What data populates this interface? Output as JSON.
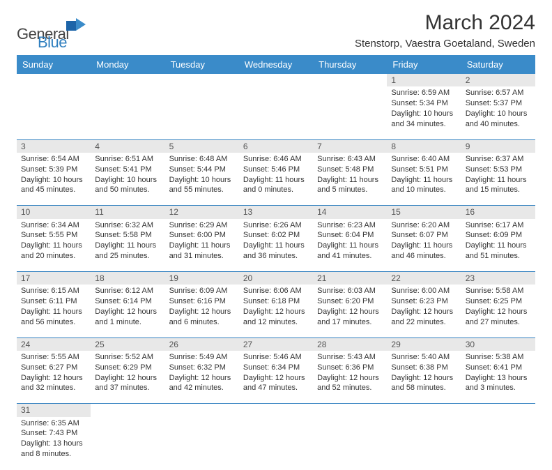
{
  "brand": {
    "general": "General",
    "blue": "Blue"
  },
  "title": "March 2024",
  "location": "Stenstorp, Vaestra Goetaland, Sweden",
  "colors": {
    "header_bg": "#3a8bc9",
    "header_text": "#ffffff",
    "daynum_bg": "#e8e8e8",
    "row_border": "#2f7fbf",
    "brand_blue": "#2f7fbf",
    "text": "#333333"
  },
  "weekdays": [
    "Sunday",
    "Monday",
    "Tuesday",
    "Wednesday",
    "Thursday",
    "Friday",
    "Saturday"
  ],
  "weeks": [
    {
      "nums": [
        "",
        "",
        "",
        "",
        "",
        "1",
        "2"
      ],
      "cells": [
        null,
        null,
        null,
        null,
        null,
        {
          "sunrise": "Sunrise: 6:59 AM",
          "sunset": "Sunset: 5:34 PM",
          "day1": "Daylight: 10 hours",
          "day2": "and 34 minutes."
        },
        {
          "sunrise": "Sunrise: 6:57 AM",
          "sunset": "Sunset: 5:37 PM",
          "day1": "Daylight: 10 hours",
          "day2": "and 40 minutes."
        }
      ]
    },
    {
      "nums": [
        "3",
        "4",
        "5",
        "6",
        "7",
        "8",
        "9"
      ],
      "cells": [
        {
          "sunrise": "Sunrise: 6:54 AM",
          "sunset": "Sunset: 5:39 PM",
          "day1": "Daylight: 10 hours",
          "day2": "and 45 minutes."
        },
        {
          "sunrise": "Sunrise: 6:51 AM",
          "sunset": "Sunset: 5:41 PM",
          "day1": "Daylight: 10 hours",
          "day2": "and 50 minutes."
        },
        {
          "sunrise": "Sunrise: 6:48 AM",
          "sunset": "Sunset: 5:44 PM",
          "day1": "Daylight: 10 hours",
          "day2": "and 55 minutes."
        },
        {
          "sunrise": "Sunrise: 6:46 AM",
          "sunset": "Sunset: 5:46 PM",
          "day1": "Daylight: 11 hours",
          "day2": "and 0 minutes."
        },
        {
          "sunrise": "Sunrise: 6:43 AM",
          "sunset": "Sunset: 5:48 PM",
          "day1": "Daylight: 11 hours",
          "day2": "and 5 minutes."
        },
        {
          "sunrise": "Sunrise: 6:40 AM",
          "sunset": "Sunset: 5:51 PM",
          "day1": "Daylight: 11 hours",
          "day2": "and 10 minutes."
        },
        {
          "sunrise": "Sunrise: 6:37 AM",
          "sunset": "Sunset: 5:53 PM",
          "day1": "Daylight: 11 hours",
          "day2": "and 15 minutes."
        }
      ]
    },
    {
      "nums": [
        "10",
        "11",
        "12",
        "13",
        "14",
        "15",
        "16"
      ],
      "cells": [
        {
          "sunrise": "Sunrise: 6:34 AM",
          "sunset": "Sunset: 5:55 PM",
          "day1": "Daylight: 11 hours",
          "day2": "and 20 minutes."
        },
        {
          "sunrise": "Sunrise: 6:32 AM",
          "sunset": "Sunset: 5:58 PM",
          "day1": "Daylight: 11 hours",
          "day2": "and 25 minutes."
        },
        {
          "sunrise": "Sunrise: 6:29 AM",
          "sunset": "Sunset: 6:00 PM",
          "day1": "Daylight: 11 hours",
          "day2": "and 31 minutes."
        },
        {
          "sunrise": "Sunrise: 6:26 AM",
          "sunset": "Sunset: 6:02 PM",
          "day1": "Daylight: 11 hours",
          "day2": "and 36 minutes."
        },
        {
          "sunrise": "Sunrise: 6:23 AM",
          "sunset": "Sunset: 6:04 PM",
          "day1": "Daylight: 11 hours",
          "day2": "and 41 minutes."
        },
        {
          "sunrise": "Sunrise: 6:20 AM",
          "sunset": "Sunset: 6:07 PM",
          "day1": "Daylight: 11 hours",
          "day2": "and 46 minutes."
        },
        {
          "sunrise": "Sunrise: 6:17 AM",
          "sunset": "Sunset: 6:09 PM",
          "day1": "Daylight: 11 hours",
          "day2": "and 51 minutes."
        }
      ]
    },
    {
      "nums": [
        "17",
        "18",
        "19",
        "20",
        "21",
        "22",
        "23"
      ],
      "cells": [
        {
          "sunrise": "Sunrise: 6:15 AM",
          "sunset": "Sunset: 6:11 PM",
          "day1": "Daylight: 11 hours",
          "day2": "and 56 minutes."
        },
        {
          "sunrise": "Sunrise: 6:12 AM",
          "sunset": "Sunset: 6:14 PM",
          "day1": "Daylight: 12 hours",
          "day2": "and 1 minute."
        },
        {
          "sunrise": "Sunrise: 6:09 AM",
          "sunset": "Sunset: 6:16 PM",
          "day1": "Daylight: 12 hours",
          "day2": "and 6 minutes."
        },
        {
          "sunrise": "Sunrise: 6:06 AM",
          "sunset": "Sunset: 6:18 PM",
          "day1": "Daylight: 12 hours",
          "day2": "and 12 minutes."
        },
        {
          "sunrise": "Sunrise: 6:03 AM",
          "sunset": "Sunset: 6:20 PM",
          "day1": "Daylight: 12 hours",
          "day2": "and 17 minutes."
        },
        {
          "sunrise": "Sunrise: 6:00 AM",
          "sunset": "Sunset: 6:23 PM",
          "day1": "Daylight: 12 hours",
          "day2": "and 22 minutes."
        },
        {
          "sunrise": "Sunrise: 5:58 AM",
          "sunset": "Sunset: 6:25 PM",
          "day1": "Daylight: 12 hours",
          "day2": "and 27 minutes."
        }
      ]
    },
    {
      "nums": [
        "24",
        "25",
        "26",
        "27",
        "28",
        "29",
        "30"
      ],
      "cells": [
        {
          "sunrise": "Sunrise: 5:55 AM",
          "sunset": "Sunset: 6:27 PM",
          "day1": "Daylight: 12 hours",
          "day2": "and 32 minutes."
        },
        {
          "sunrise": "Sunrise: 5:52 AM",
          "sunset": "Sunset: 6:29 PM",
          "day1": "Daylight: 12 hours",
          "day2": "and 37 minutes."
        },
        {
          "sunrise": "Sunrise: 5:49 AM",
          "sunset": "Sunset: 6:32 PM",
          "day1": "Daylight: 12 hours",
          "day2": "and 42 minutes."
        },
        {
          "sunrise": "Sunrise: 5:46 AM",
          "sunset": "Sunset: 6:34 PM",
          "day1": "Daylight: 12 hours",
          "day2": "and 47 minutes."
        },
        {
          "sunrise": "Sunrise: 5:43 AM",
          "sunset": "Sunset: 6:36 PM",
          "day1": "Daylight: 12 hours",
          "day2": "and 52 minutes."
        },
        {
          "sunrise": "Sunrise: 5:40 AM",
          "sunset": "Sunset: 6:38 PM",
          "day1": "Daylight: 12 hours",
          "day2": "and 58 minutes."
        },
        {
          "sunrise": "Sunrise: 5:38 AM",
          "sunset": "Sunset: 6:41 PM",
          "day1": "Daylight: 13 hours",
          "day2": "and 3 minutes."
        }
      ]
    },
    {
      "nums": [
        "31",
        "",
        "",
        "",
        "",
        "",
        ""
      ],
      "cells": [
        {
          "sunrise": "Sunrise: 6:35 AM",
          "sunset": "Sunset: 7:43 PM",
          "day1": "Daylight: 13 hours",
          "day2": "and 8 minutes."
        },
        null,
        null,
        null,
        null,
        null,
        null
      ]
    }
  ]
}
